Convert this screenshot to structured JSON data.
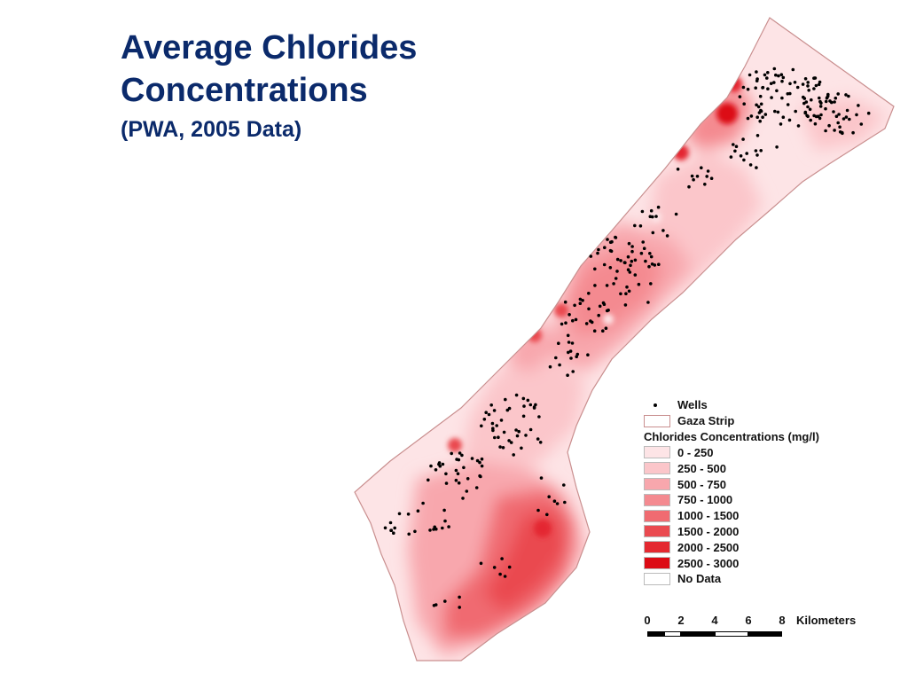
{
  "title": {
    "line1": "Average Chlorides",
    "line2": "Concentrations",
    "subtitle": "(PWA, 2005 Data)"
  },
  "colors": {
    "title": "#0b2a6b",
    "outline": "#c98f8f"
  },
  "legend": {
    "wells_label": "Wells",
    "boundary_label": "Gaza Strip",
    "heading": "Chlorides Concentrations (mg/l)",
    "classes": [
      {
        "label": "0 - 250",
        "color": "#fde4e6"
      },
      {
        "label": "250 - 500",
        "color": "#fbc6ca"
      },
      {
        "label": "500 - 750",
        "color": "#f8a7ad"
      },
      {
        "label": "750 - 1000",
        "color": "#f48a90"
      },
      {
        "label": "1000 - 1500",
        "color": "#f06b71"
      },
      {
        "label": "1500 - 2000",
        "color": "#ea4a50"
      },
      {
        "label": "2000 - 2500",
        "color": "#e42830"
      },
      {
        "label": "2500 - 3000",
        "color": "#dc0a14"
      },
      {
        "label": "No Data",
        "color": "#ffffff"
      }
    ]
  },
  "scale_bar": {
    "ticks": [
      "0",
      "2",
      "4",
      "6",
      "8"
    ],
    "unit": "Kilometers"
  }
}
